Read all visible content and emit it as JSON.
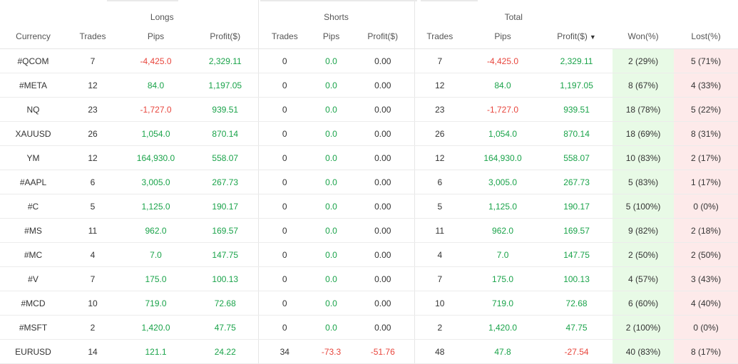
{
  "groups": {
    "longs": "Longs",
    "shorts": "Shorts",
    "total": "Total"
  },
  "columns": {
    "currency": "Currency",
    "trades_l": "Trades",
    "pips_l": "Pips",
    "profit_l": "Profit($)",
    "trades_s": "Trades",
    "pips_s": "Pips",
    "profit_s": "Profit($)",
    "trades_t": "Trades",
    "pips_t": "Pips",
    "profit_t": "Profit($)",
    "won": "Won(%)",
    "lost": "Lost(%)",
    "sort_indicator": "▼"
  },
  "colors": {
    "positive": "#1aa34a",
    "negative": "#e8453c",
    "won_bg": "#e8fae6",
    "lost_bg": "#fdeaea"
  },
  "rows": [
    {
      "currency": "#QCOM",
      "lt": "7",
      "lp": "-4,425.0",
      "lpr": "2,329.11",
      "st": "0",
      "sp": "0.0",
      "spr": "0.00",
      "tt": "7",
      "tp": "-4,425.0",
      "tpr": "2,329.11",
      "won": "2 (29%)",
      "lost": "5 (71%)"
    },
    {
      "currency": "#META",
      "lt": "12",
      "lp": "84.0",
      "lpr": "1,197.05",
      "st": "0",
      "sp": "0.0",
      "spr": "0.00",
      "tt": "12",
      "tp": "84.0",
      "tpr": "1,197.05",
      "won": "8 (67%)",
      "lost": "4 (33%)"
    },
    {
      "currency": "NQ",
      "lt": "23",
      "lp": "-1,727.0",
      "lpr": "939.51",
      "st": "0",
      "sp": "0.0",
      "spr": "0.00",
      "tt": "23",
      "tp": "-1,727.0",
      "tpr": "939.51",
      "won": "18 (78%)",
      "lost": "5 (22%)"
    },
    {
      "currency": "XAUUSD",
      "lt": "26",
      "lp": "1,054.0",
      "lpr": "870.14",
      "st": "0",
      "sp": "0.0",
      "spr": "0.00",
      "tt": "26",
      "tp": "1,054.0",
      "tpr": "870.14",
      "won": "18 (69%)",
      "lost": "8 (31%)"
    },
    {
      "currency": "YM",
      "lt": "12",
      "lp": "164,930.0",
      "lpr": "558.07",
      "st": "0",
      "sp": "0.0",
      "spr": "0.00",
      "tt": "12",
      "tp": "164,930.0",
      "tpr": "558.07",
      "won": "10 (83%)",
      "lost": "2 (17%)"
    },
    {
      "currency": "#AAPL",
      "lt": "6",
      "lp": "3,005.0",
      "lpr": "267.73",
      "st": "0",
      "sp": "0.0",
      "spr": "0.00",
      "tt": "6",
      "tp": "3,005.0",
      "tpr": "267.73",
      "won": "5 (83%)",
      "lost": "1 (17%)"
    },
    {
      "currency": "#C",
      "lt": "5",
      "lp": "1,125.0",
      "lpr": "190.17",
      "st": "0",
      "sp": "0.0",
      "spr": "0.00",
      "tt": "5",
      "tp": "1,125.0",
      "tpr": "190.17",
      "won": "5 (100%)",
      "lost": "0 (0%)"
    },
    {
      "currency": "#MS",
      "lt": "11",
      "lp": "962.0",
      "lpr": "169.57",
      "st": "0",
      "sp": "0.0",
      "spr": "0.00",
      "tt": "11",
      "tp": "962.0",
      "tpr": "169.57",
      "won": "9 (82%)",
      "lost": "2 (18%)"
    },
    {
      "currency": "#MC",
      "lt": "4",
      "lp": "7.0",
      "lpr": "147.75",
      "st": "0",
      "sp": "0.0",
      "spr": "0.00",
      "tt": "4",
      "tp": "7.0",
      "tpr": "147.75",
      "won": "2 (50%)",
      "lost": "2 (50%)"
    },
    {
      "currency": "#V",
      "lt": "7",
      "lp": "175.0",
      "lpr": "100.13",
      "st": "0",
      "sp": "0.0",
      "spr": "0.00",
      "tt": "7",
      "tp": "175.0",
      "tpr": "100.13",
      "won": "4 (57%)",
      "lost": "3 (43%)"
    },
    {
      "currency": "#MCD",
      "lt": "10",
      "lp": "719.0",
      "lpr": "72.68",
      "st": "0",
      "sp": "0.0",
      "spr": "0.00",
      "tt": "10",
      "tp": "719.0",
      "tpr": "72.68",
      "won": "6 (60%)",
      "lost": "4 (40%)"
    },
    {
      "currency": "#MSFT",
      "lt": "2",
      "lp": "1,420.0",
      "lpr": "47.75",
      "st": "0",
      "sp": "0.0",
      "spr": "0.00",
      "tt": "2",
      "tp": "1,420.0",
      "tpr": "47.75",
      "won": "2 (100%)",
      "lost": "0 (0%)"
    },
    {
      "currency": "EURUSD",
      "lt": "14",
      "lp": "121.1",
      "lpr": "24.22",
      "st": "34",
      "sp": "-73.3",
      "spr": "-51.76",
      "tt": "48",
      "tp": "47.8",
      "tpr": "-27.54",
      "won": "40 (83%)",
      "lost": "8 (17%)"
    }
  ]
}
